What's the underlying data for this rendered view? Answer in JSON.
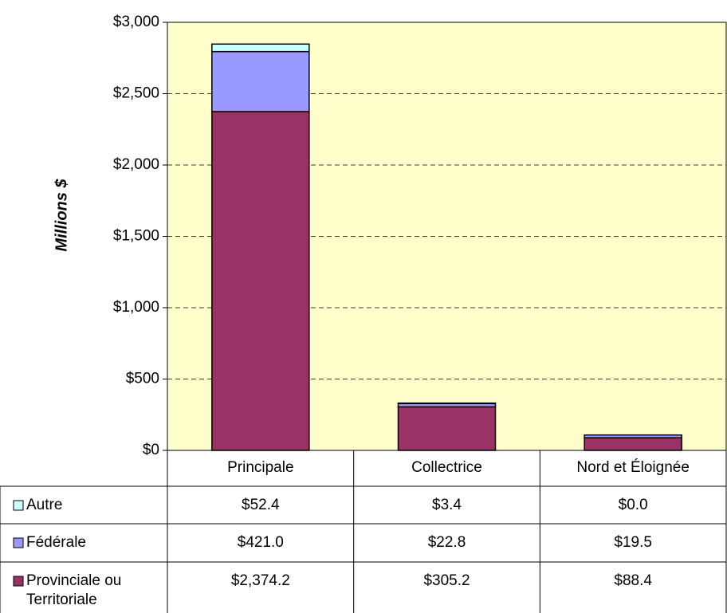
{
  "chart_data": {
    "type": "bar",
    "stacked": true,
    "y_label": "Millions $",
    "categories": [
      "Principale",
      "Collectrice",
      "Nord et Éloignée"
    ],
    "series": [
      {
        "name": "Autre",
        "color": "#ccffff",
        "values": [
          52.4,
          3.4,
          0.0
        ],
        "value_labels": [
          "$52.4",
          "$3.4",
          "$0.0"
        ]
      },
      {
        "name": "Fédérale",
        "color": "#9999ff",
        "values": [
          421.0,
          22.8,
          19.5
        ],
        "value_labels": [
          "$421.0",
          "$22.8",
          "$19.5"
        ]
      },
      {
        "name": "Provinciale ou Territoriale",
        "color": "#993366",
        "values": [
          2374.2,
          305.2,
          88.4
        ],
        "value_labels": [
          "$2,374.2",
          "$305.2",
          "$88.4"
        ]
      }
    ],
    "ylim": [
      0,
      3000
    ],
    "yticks": [
      {
        "value": 0,
        "label": "$0"
      },
      {
        "value": 500,
        "label": "$500"
      },
      {
        "value": 1000,
        "label": "$1,000"
      },
      {
        "value": 1500,
        "label": "$1,500"
      },
      {
        "value": 2000,
        "label": "$2,000"
      },
      {
        "value": 2500,
        "label": "$2,500"
      },
      {
        "value": 3000,
        "label": "$3,000"
      }
    ],
    "grid": true,
    "plot_background": "#ffffcc"
  }
}
